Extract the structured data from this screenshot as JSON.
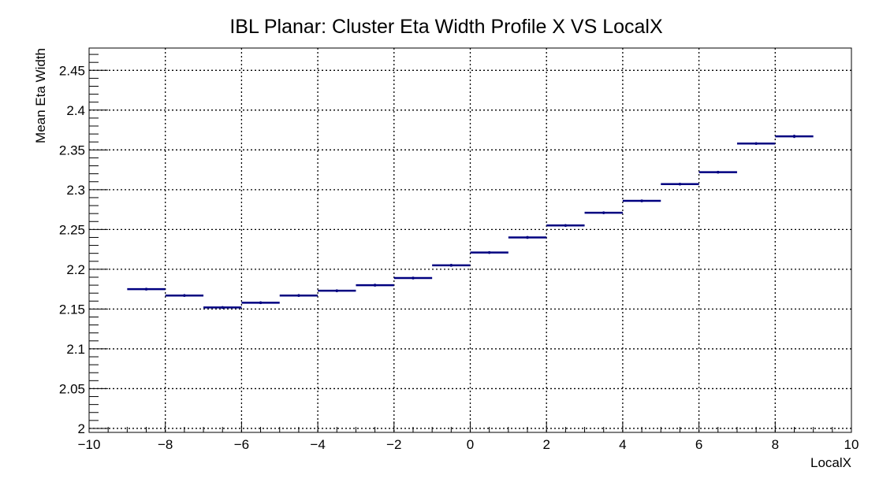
{
  "chart_data": {
    "type": "profile",
    "title": "IBL Planar: Cluster Eta Width Profile X VS LocalX",
    "xlabel": "LocalX",
    "ylabel": "Mean Eta Width",
    "xlim": [
      -10,
      10
    ],
    "ylim": [
      1.995,
      2.478
    ],
    "x_ticks": [
      "−10",
      "−8",
      "−6",
      "−4",
      "−2",
      "0",
      "2",
      "4",
      "6",
      "8",
      "10"
    ],
    "x_tick_values": [
      -10,
      -8,
      -6,
      -4,
      -2,
      0,
      2,
      4,
      6,
      8,
      10
    ],
    "y_ticks": [
      "2",
      "2.05",
      "2.1",
      "2.15",
      "2.2",
      "2.25",
      "2.3",
      "2.35",
      "2.4",
      "2.45"
    ],
    "y_tick_values": [
      2.0,
      2.05,
      2.1,
      2.15,
      2.2,
      2.25,
      2.3,
      2.35,
      2.4,
      2.45
    ],
    "grid": true,
    "color": "#000080",
    "series": [
      {
        "bin_low": [
          -9,
          -8,
          -7,
          -6,
          -5,
          -4,
          -3,
          -2,
          -1,
          0,
          1,
          2,
          3,
          4,
          5,
          6,
          7,
          8
        ],
        "bin_high": [
          -8,
          -7,
          -6,
          -5,
          -4,
          -3,
          -2,
          -1,
          0,
          1,
          2,
          3,
          4,
          5,
          6,
          7,
          8,
          9
        ],
        "values": [
          2.175,
          2.167,
          2.152,
          2.158,
          2.167,
          2.173,
          2.18,
          2.189,
          2.205,
          2.221,
          2.24,
          2.255,
          2.271,
          2.286,
          2.307,
          2.322,
          2.358,
          2.367
        ],
        "errors": [
          0.001,
          0.001,
          0.001,
          0.001,
          0.001,
          0.001,
          0.001,
          0.001,
          0.001,
          0.001,
          0.001,
          0.001,
          0.001,
          0.001,
          0.001,
          0.001,
          0.001,
          0.002
        ]
      }
    ]
  }
}
